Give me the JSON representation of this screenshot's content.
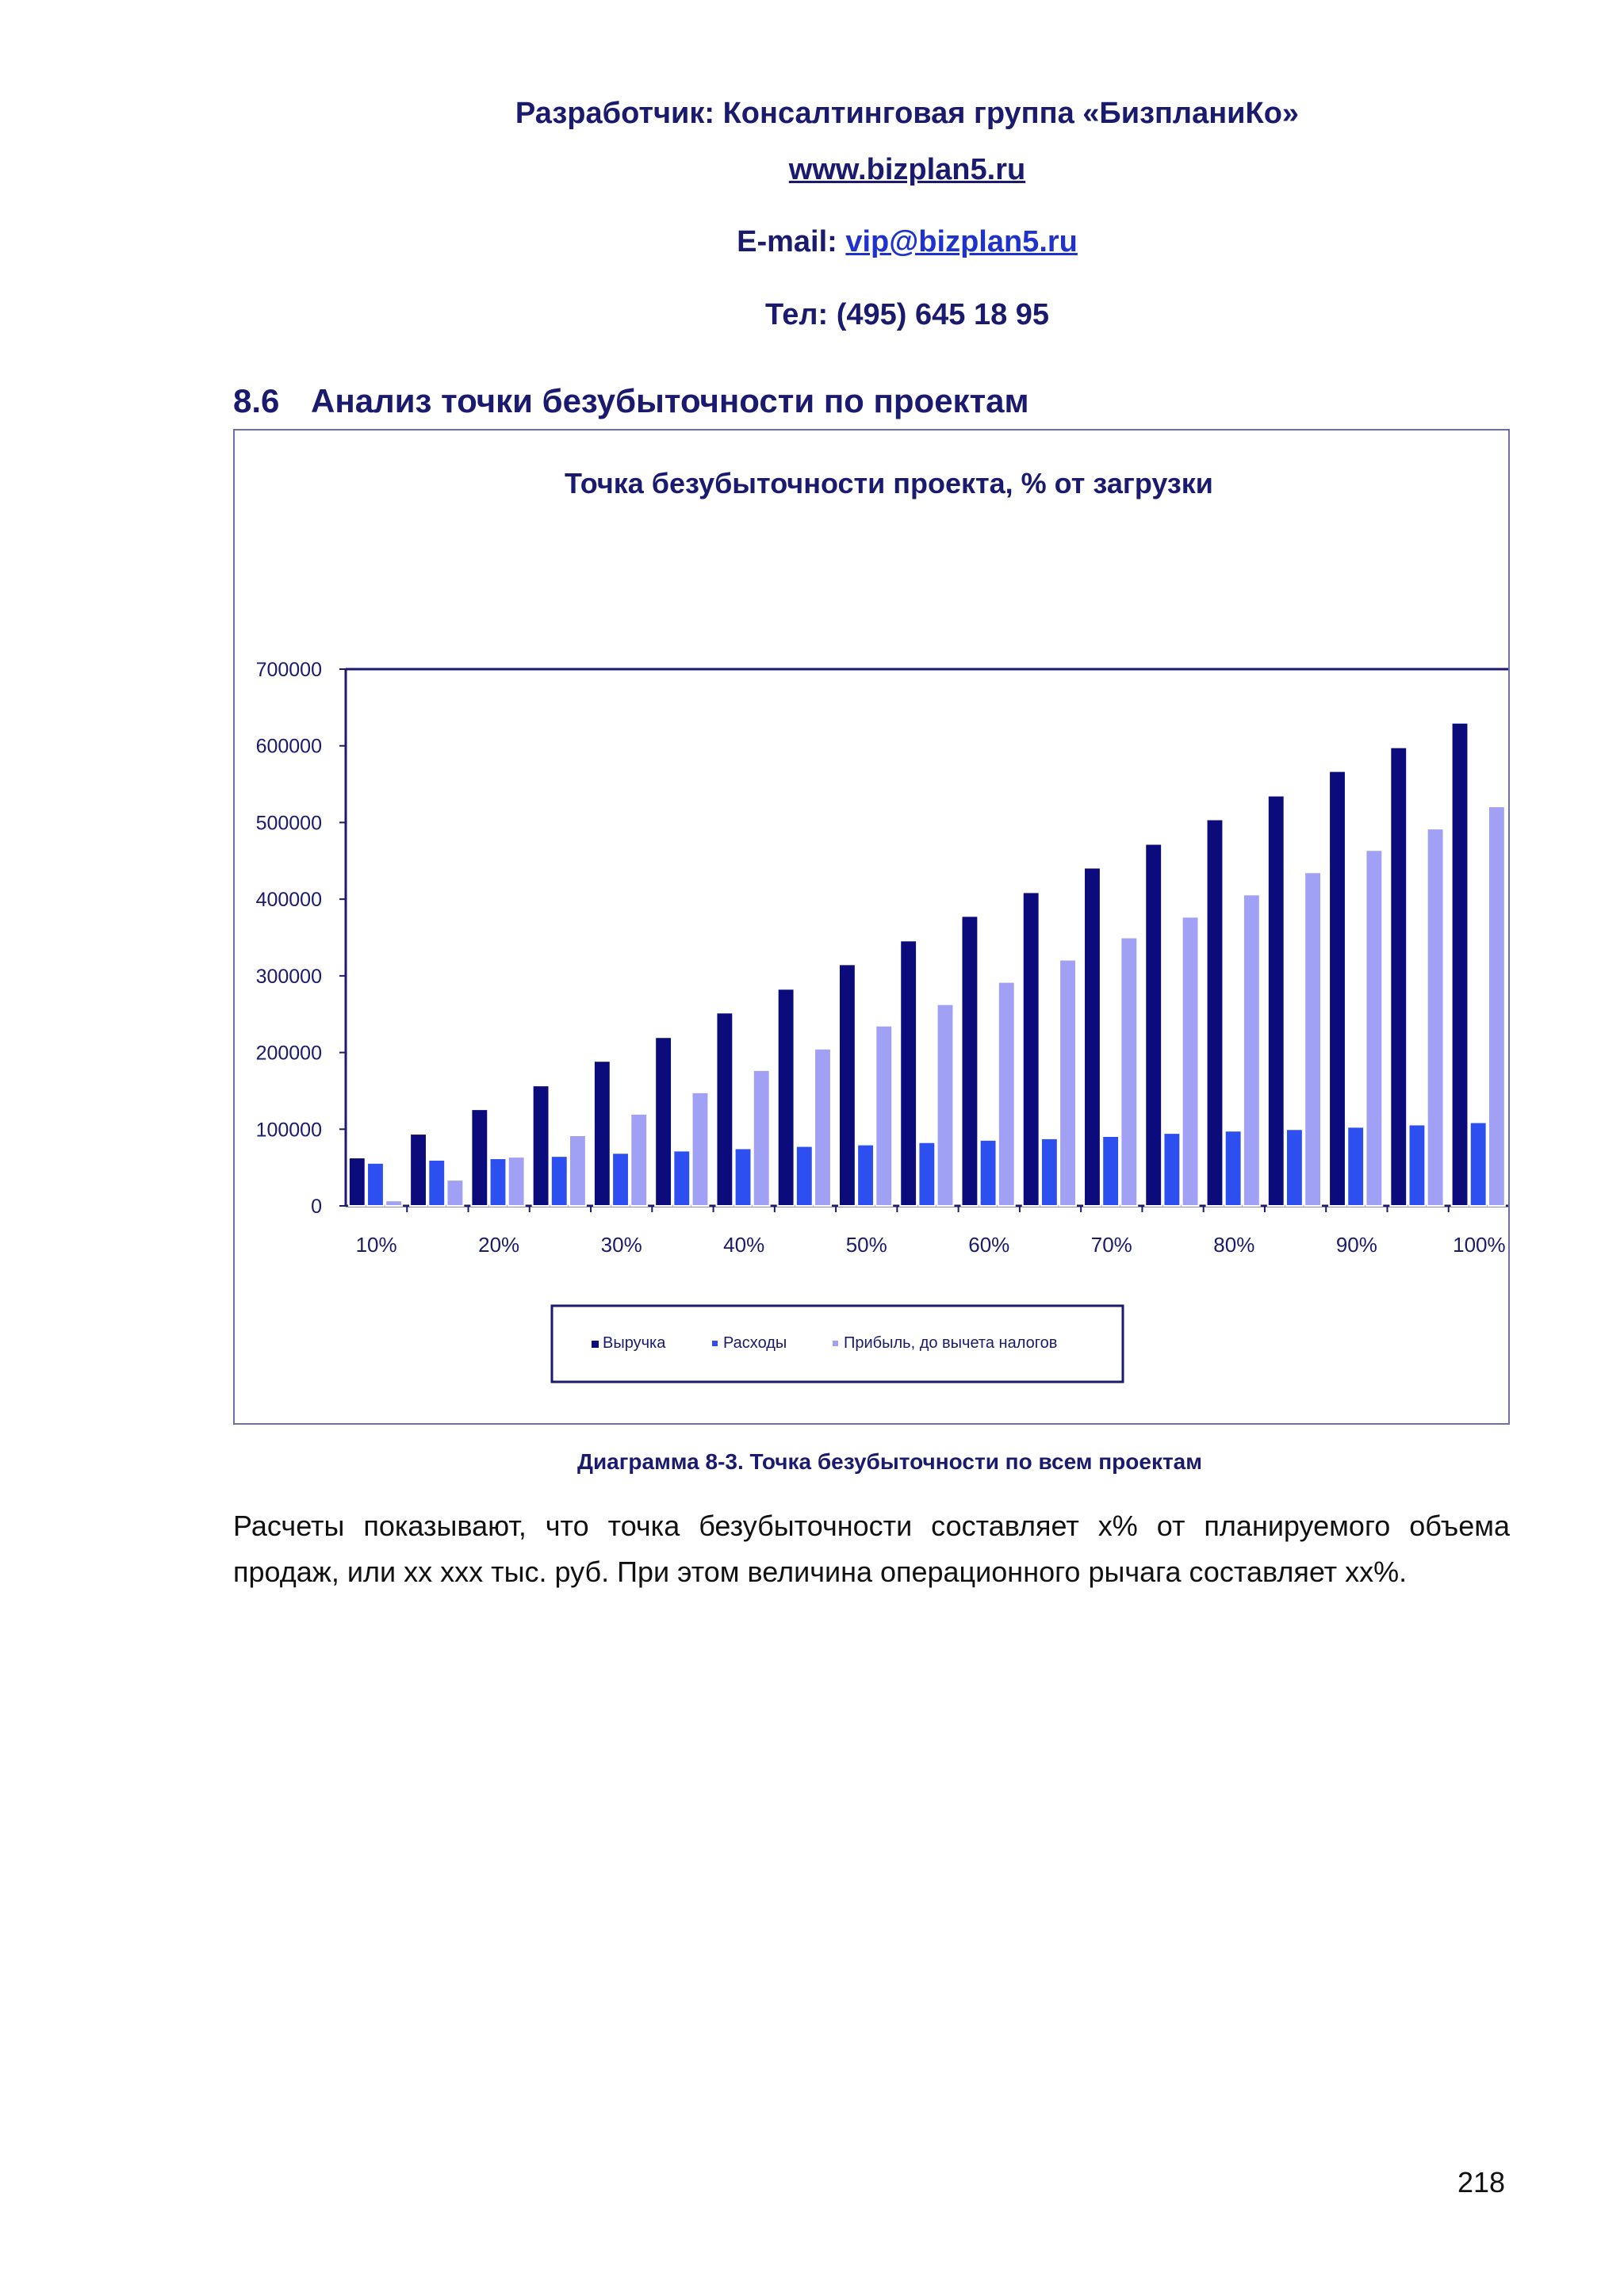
{
  "header": {
    "developer": "Разработчик: Консалтинговая группа «БизпланиКо»",
    "website": "www.bizplan5.ru",
    "email_label": "E-mail: ",
    "email": "vip@bizplan5.ru",
    "phone": "Тел: (495) 645 18 95"
  },
  "section": {
    "number": "8.6",
    "title": "Анализ точки безубыточности по проектам"
  },
  "chart_data": {
    "type": "bar",
    "title": "Точка безубыточности проекта, % от загрузки",
    "xlabel": "",
    "ylabel": "",
    "ylim": [
      0,
      700000
    ],
    "yticks": [
      "0",
      "100000",
      "200000",
      "300000",
      "400000",
      "500000",
      "600000",
      "700000"
    ],
    "categories": [
      "10%",
      "15%",
      "20%",
      "25%",
      "30%",
      "35%",
      "40%",
      "45%",
      "50%",
      "55%",
      "60%",
      "65%",
      "70%",
      "75%",
      "80%",
      "85%",
      "90%",
      "95%",
      "100%"
    ],
    "category_labels_shown": [
      "10%",
      "",
      "20%",
      "",
      "30%",
      "",
      "40%",
      "",
      "50%",
      "",
      "60%",
      "",
      "70%",
      "",
      "80%",
      "",
      "90%",
      "",
      "100%"
    ],
    "series": [
      {
        "name": "Выручка",
        "color": "#0b0b7c",
        "values": [
          63000,
          94000,
          126000,
          157000,
          189000,
          220000,
          252000,
          283000,
          315000,
          346000,
          378000,
          409000,
          441000,
          472000,
          504000,
          535000,
          567000,
          598000,
          630000
        ]
      },
      {
        "name": "Расходы",
        "color": "#2e4ff0",
        "values": [
          56000,
          60000,
          62000,
          65000,
          69000,
          72000,
          75000,
          78000,
          80000,
          83000,
          86000,
          88000,
          91000,
          95000,
          98000,
          100000,
          103000,
          106000,
          109000
        ]
      },
      {
        "name": "Прибыль, до вычета налогов",
        "color": "#a0a0f4",
        "values": [
          7000,
          34000,
          64000,
          92000,
          120000,
          148000,
          177000,
          205000,
          235000,
          263000,
          292000,
          321000,
          350000,
          377000,
          406000,
          435000,
          464000,
          492000,
          521000
        ]
      }
    ],
    "legend": "bottom",
    "grid": false
  },
  "caption": "Диаграмма 8-3. Точка безубыточности по всем проектам",
  "paragraph": "Расчеты показывают, что точка безубыточности составляет x% от планируемого объема продаж, или xx xxx тыс. руб. При этом величина операционного рычага составляет xx%.",
  "page_number": "218"
}
